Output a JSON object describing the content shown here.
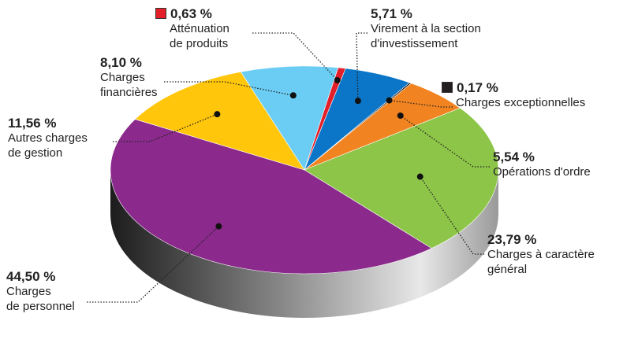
{
  "chart_data": {
    "type": "pie",
    "categories": [
      "Atténuation\nde produits",
      "Virement à la section\nd'investissement",
      "Charges exceptionnelles",
      "Opérations d'ordre",
      "Charges à caractère\ngénéral",
      "Charges\nde personnel",
      "Autres charges\nde gestion",
      "Charges\nfinancières"
    ],
    "values": [
      0.63,
      5.71,
      0.17,
      5.54,
      23.79,
      44.5,
      11.56,
      8.1
    ],
    "value_labels": [
      "0,63 %",
      "5,71 %",
      "0,17 %",
      "5,54 %",
      "23,79 %",
      "44,50 %",
      "11,56 %",
      "8,10 %"
    ],
    "colors": [
      "#e3202a",
      "#0b76c8",
      "#231f20",
      "#f18421",
      "#8dc549",
      "#8b2a8c",
      "#ffc60b",
      "#6bcdf4"
    ]
  }
}
